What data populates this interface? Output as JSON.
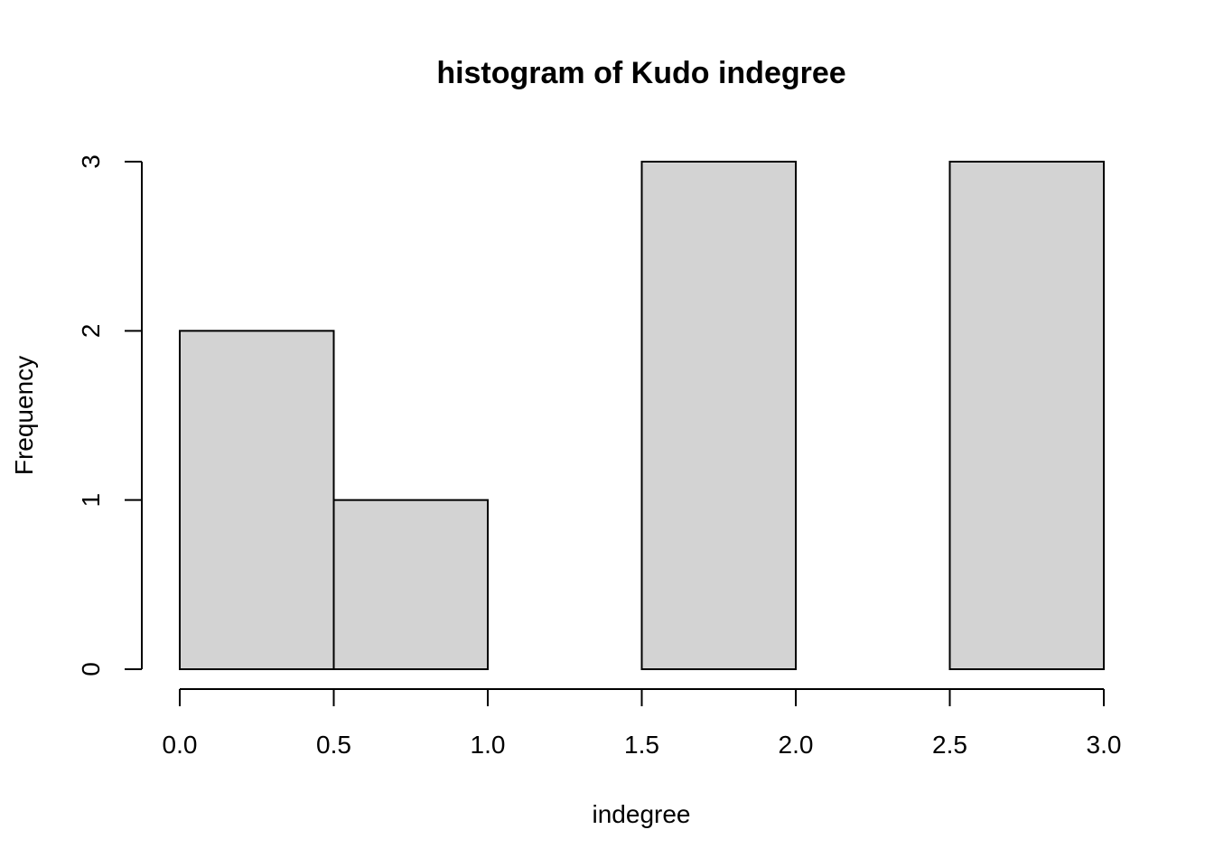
{
  "chart_data": {
    "type": "bar",
    "subtype": "histogram",
    "title": "histogram of Kudo indegree",
    "xlabel": "indegree",
    "ylabel": "Frequency",
    "bins": [
      {
        "start": 0.0,
        "end": 0.5,
        "count": 2
      },
      {
        "start": 0.5,
        "end": 1.0,
        "count": 1
      },
      {
        "start": 1.0,
        "end": 1.5,
        "count": 0
      },
      {
        "start": 1.5,
        "end": 2.0,
        "count": 3
      },
      {
        "start": 2.0,
        "end": 2.5,
        "count": 0
      },
      {
        "start": 2.5,
        "end": 3.0,
        "count": 3
      }
    ],
    "xlim": [
      0.0,
      3.0
    ],
    "ylim": [
      0,
      3
    ],
    "x_ticks": [
      "0.0",
      "0.5",
      "1.0",
      "1.5",
      "2.0",
      "2.5",
      "3.0"
    ],
    "y_ticks": [
      "0",
      "1",
      "2",
      "3"
    ],
    "bar_color": "#d3d3d3",
    "grid": false,
    "legend": "none"
  }
}
